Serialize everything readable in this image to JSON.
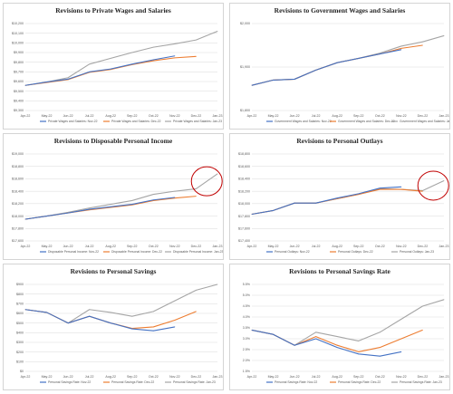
{
  "colors": {
    "nov": "#4472C4",
    "dec": "#ED7D31",
    "jan": "#A5A5A5",
    "highlight": "#C00000",
    "grid": "#D9D9D9"
  },
  "chart_data": [
    {
      "type": "line",
      "title": "Revisions to Private Wages and Salaries",
      "categories": [
        "Apr-22",
        "May-22",
        "Jun-22",
        "Jul-22",
        "Aug-22",
        "Sep-22",
        "Oct-22",
        "Nov-22",
        "Dec-22",
        "Jan-23"
      ],
      "y_ticks": [
        "$9,300",
        "$9,400",
        "$9,500",
        "$9,600",
        "$9,700",
        "$9,800",
        "$9,900",
        "$10,000",
        "$10,100",
        "$10,200"
      ],
      "ylim": [
        9300,
        10200
      ],
      "legend_position": "bottom",
      "highlight": false,
      "series": [
        {
          "name": "Private Wages and Salaries: Nov-22",
          "color": "#4472C4",
          "values": [
            9560,
            9595,
            9625,
            9700,
            9730,
            9780,
            9825,
            9865,
            null,
            null
          ]
        },
        {
          "name": "Private Wages and Salaries: Dec-22",
          "color": "#ED7D31",
          "values": [
            9560,
            9590,
            9620,
            9695,
            9725,
            9775,
            9815,
            9845,
            9860,
            null
          ]
        },
        {
          "name": "Private Wages and Salaries: Jan-23",
          "color": "#A5A5A5",
          "values": [
            9560,
            9595,
            9640,
            9780,
            9840,
            9900,
            9955,
            9990,
            10030,
            10120
          ]
        }
      ]
    },
    {
      "type": "line",
      "title": "Revisions to Government Wages and Salaries",
      "categories": [
        "Apr-22",
        "May-22",
        "Jun-22",
        "Jul-22",
        "Aug-22",
        "Sep-22",
        "Oct-22",
        "Nov-22",
        "Dec-22",
        "Jan-23"
      ],
      "y_ticks": [
        "$1,800",
        "$1,900",
        "$2,000"
      ],
      "ylim": [
        1800,
        2000
      ],
      "legend_position": "bottom",
      "highlight": false,
      "series": [
        {
          "name": "Government Wages and Salaries: Nov-22",
          "color": "#4472C4",
          "values": [
            1858,
            1870,
            1872,
            1893,
            1910,
            1920,
            1930,
            1940,
            null,
            null
          ]
        },
        {
          "name": "Government Wages and Salaries: Dec-22",
          "color": "#ED7D31",
          "values": [
            1858,
            1870,
            1872,
            1893,
            1910,
            1920,
            1930,
            1943,
            1950,
            null
          ]
        },
        {
          "name": "Government Wages and Salaries: Jan-23",
          "color": "#A5A5A5",
          "values": [
            1858,
            1870,
            1872,
            1893,
            1910,
            1920,
            1932,
            1948,
            1958,
            1972
          ]
        }
      ]
    },
    {
      "type": "line",
      "title": "Revisions to Disposable Personal Income",
      "categories": [
        "Apr-22",
        "May-22",
        "Jun-22",
        "Jul-22",
        "Aug-22",
        "Sep-22",
        "Oct-22",
        "Nov-22",
        "Dec-22",
        "Jan-23"
      ],
      "y_ticks": [
        "$17,600",
        "$17,800",
        "$18,000",
        "$18,200",
        "$18,400",
        "$18,600",
        "$18,800",
        "$19,000"
      ],
      "ylim": [
        17600,
        19000
      ],
      "legend_position": "bottom",
      "highlight": true,
      "series": [
        {
          "name": "Disposable Personal Income: Nov-22",
          "color": "#4472C4",
          "values": [
            17950,
            18000,
            18050,
            18110,
            18150,
            18190,
            18260,
            18300,
            null,
            null
          ]
        },
        {
          "name": "Disposable Personal Income: Dec-22",
          "color": "#ED7D31",
          "values": [
            17950,
            18000,
            18050,
            18100,
            18140,
            18180,
            18250,
            18290,
            18320,
            null
          ]
        },
        {
          "name": "Disposable Personal Income: Jan-23",
          "color": "#A5A5A5",
          "values": [
            17950,
            18000,
            18060,
            18130,
            18190,
            18250,
            18350,
            18400,
            18440,
            18680
          ]
        }
      ]
    },
    {
      "type": "line",
      "title": "Revisions to Personal Outlays",
      "categories": [
        "Apr-22",
        "May-22",
        "Jun-22",
        "Jul-22",
        "Aug-22",
        "Sep-22",
        "Oct-22",
        "Nov-22",
        "Dec-22",
        "Jan-23"
      ],
      "y_ticks": [
        "$17,400",
        "$17,600",
        "$17,800",
        "$18,000",
        "$18,200",
        "$18,400",
        "$18,600",
        "$18,800"
      ],
      "ylim": [
        17400,
        18800
      ],
      "legend_position": "bottom",
      "highlight": true,
      "series": [
        {
          "name": "Personal Outlays: Nov-22",
          "color": "#4472C4",
          "values": [
            17830,
            17890,
            18010,
            18010,
            18090,
            18160,
            18250,
            18270,
            null,
            null
          ]
        },
        {
          "name": "Personal Outlays: Dec-22",
          "color": "#ED7D31",
          "values": [
            17830,
            17890,
            18010,
            18010,
            18080,
            18150,
            18230,
            18230,
            18200,
            null
          ]
        },
        {
          "name": "Personal Outlays: Jan-23",
          "color": "#A5A5A5",
          "values": [
            17830,
            17890,
            18010,
            18010,
            18080,
            18150,
            18240,
            18230,
            18210,
            18370
          ]
        }
      ]
    },
    {
      "type": "line",
      "title": "Revisions to Personal Savings",
      "categories": [
        "Apr-22",
        "May-22",
        "Jun-22",
        "Jul-22",
        "Aug-22",
        "Sep-22",
        "Oct-22",
        "Nov-22",
        "Dec-22",
        "Jan-23"
      ],
      "y_ticks": [
        "$0",
        "$100",
        "$200",
        "$300",
        "$400",
        "$500",
        "$600",
        "$700",
        "$800",
        "$900"
      ],
      "ylim": [
        0,
        900
      ],
      "legend_position": "bottom",
      "highlight": false,
      "series": [
        {
          "name": "Personal Savings Rate: Nov-22",
          "color": "#4472C4",
          "values": [
            640,
            610,
            500,
            570,
            500,
            440,
            420,
            460,
            null,
            null
          ]
        },
        {
          "name": "Personal Savings Rate: Dec-22",
          "color": "#ED7D31",
          "values": [
            640,
            610,
            500,
            570,
            500,
            445,
            460,
            530,
            620,
            null
          ]
        },
        {
          "name": "Personal Savings Rate: Jan-23",
          "color": "#A5A5A5",
          "values": [
            640,
            610,
            500,
            640,
            610,
            570,
            620,
            730,
            840,
            900
          ]
        }
      ]
    },
    {
      "type": "line",
      "title": "Revisions to Personal Savings Rate",
      "categories": [
        "Apr-22",
        "May-22",
        "Jun-22",
        "Jul-22",
        "Aug-22",
        "Sep-22",
        "Oct-22",
        "Nov-22",
        "Dec-22",
        "Jan-23"
      ],
      "y_ticks": [
        "1.5%",
        "2.0%",
        "2.5%",
        "3.0%",
        "3.5%",
        "4.0%",
        "4.5%",
        "5.0%",
        "5.5%"
      ],
      "ylim": [
        1.5,
        5.5
      ],
      "legend_position": "bottom",
      "highlight": false,
      "series": [
        {
          "name": "Personal Savings Rate: Nov-22",
          "color": "#4472C4",
          "values": [
            3.4,
            3.2,
            2.7,
            3.0,
            2.6,
            2.3,
            2.2,
            2.4,
            null,
            null
          ]
        },
        {
          "name": "Personal Savings Rate: Dec-22",
          "color": "#ED7D31",
          "values": [
            3.4,
            3.2,
            2.7,
            3.1,
            2.7,
            2.4,
            2.6,
            3.0,
            3.4,
            null
          ]
        },
        {
          "name": "Personal Savings Rate: Jan-23",
          "color": "#A5A5A5",
          "values": [
            3.4,
            3.2,
            2.7,
            3.3,
            3.1,
            2.9,
            3.3,
            3.9,
            4.5,
            4.8
          ]
        }
      ]
    }
  ]
}
